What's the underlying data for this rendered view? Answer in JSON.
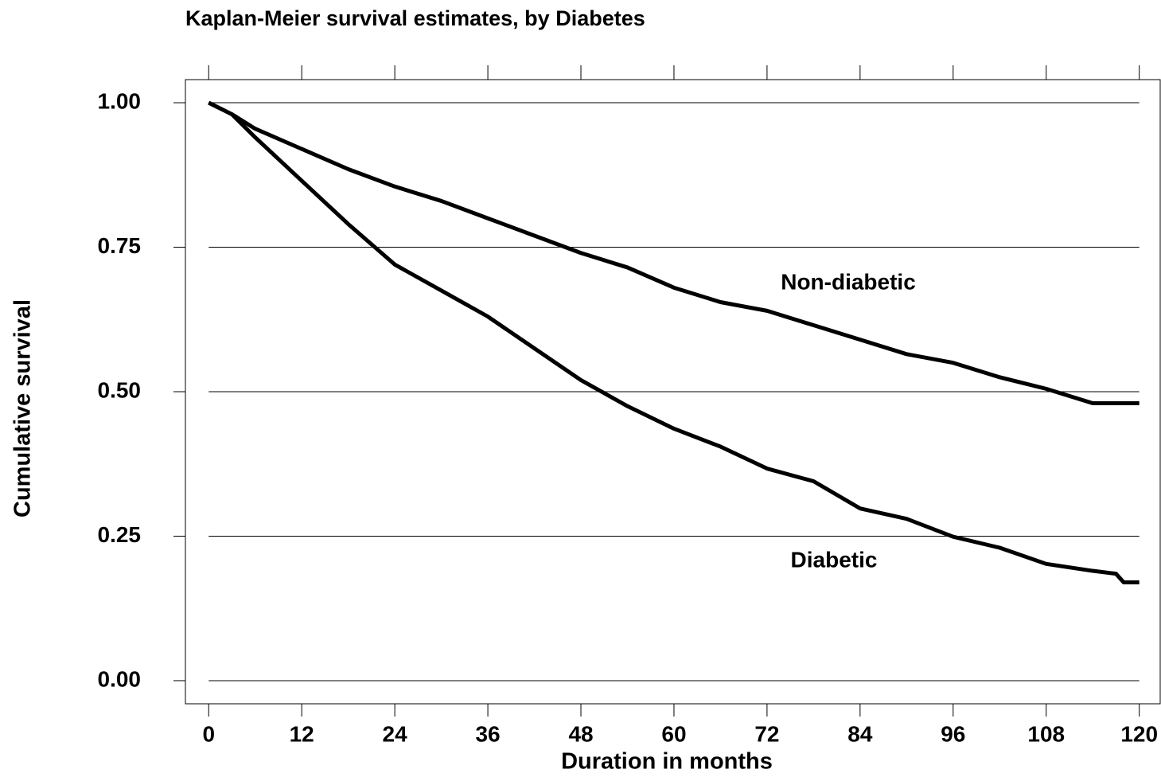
{
  "chart_data": {
    "type": "line",
    "title": "Kaplan-Meier survival estimates, by Diabetes",
    "x_label": "Duration in months",
    "y_label": "Cumulative survival",
    "annotations": [
      "Non-diabetic",
      "Diabetic"
    ],
    "series": [
      {
        "name": "Non-diabetic",
        "color": "#000000",
        "x": [
          0,
          3,
          6,
          12,
          18,
          24,
          30,
          36,
          42,
          48,
          54,
          60,
          66,
          72,
          78,
          84,
          90,
          96,
          102,
          108,
          114,
          120
        ],
        "values": [
          1.0,
          0.98,
          0.955,
          0.92,
          0.885,
          0.855,
          0.83,
          0.8,
          0.77,
          0.74,
          0.715,
          0.68,
          0.655,
          0.64,
          0.615,
          0.59,
          0.565,
          0.55,
          0.525,
          0.505,
          0.48,
          0.48
        ]
      },
      {
        "name": "Diabetic",
        "color": "#000000",
        "x": [
          0,
          3,
          6,
          12,
          18,
          24,
          30,
          36,
          42,
          48,
          54,
          60,
          66,
          72,
          78,
          84,
          90,
          96,
          102,
          108,
          114,
          117,
          118,
          120
        ],
        "values": [
          1.0,
          0.98,
          0.94,
          0.865,
          0.79,
          0.72,
          0.675,
          0.63,
          0.575,
          0.52,
          0.475,
          0.436,
          0.405,
          0.367,
          0.345,
          0.298,
          0.28,
          0.249,
          0.23,
          0.202,
          0.19,
          0.185,
          0.17,
          0.17
        ]
      }
    ],
    "xlim": [
      -3,
      122.7
    ],
    "xticks": [
      0,
      12,
      24,
      36,
      48,
      60,
      72,
      84,
      96,
      108,
      120
    ],
    "ylim": [
      -0.04,
      1.04
    ],
    "yticks": [
      {
        "value": 0,
        "label": "0.00"
      },
      {
        "value": 0.25,
        "label": "0.25"
      },
      {
        "value": 0.5,
        "label": "0.50"
      },
      {
        "value": 0.75,
        "label": "0.75"
      },
      {
        "value": 1,
        "label": "1.00"
      }
    ],
    "grid": true
  }
}
